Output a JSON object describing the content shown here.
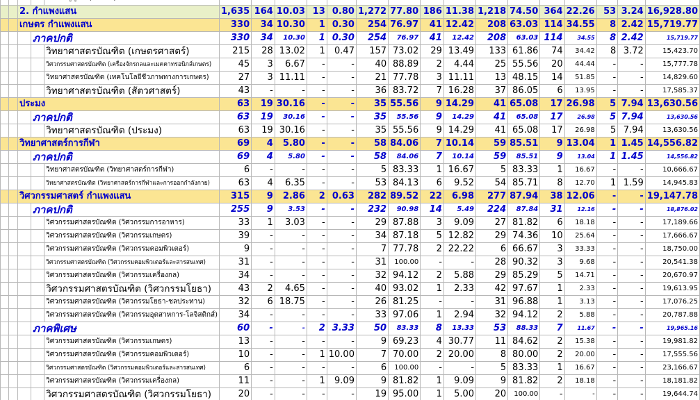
{
  "document": {
    "top_row": {
      "label": "ระดับปริญญาตรี (ภาคปกติ) กรณีศึกษา",
      "nums": [
        "",
        "",
        "",
        "",
        "",
        "",
        "",
        "",
        "",
        "",
        "",
        "",
        "",
        "",
        "",
        "",
        ""
      ]
    },
    "rows": [
      {
        "type": "uni",
        "label": "2. กำแพงแสน",
        "nums": [
          "1,635",
          "164",
          "10.03",
          "13",
          "0.80",
          "1,272",
          "77.80",
          "186",
          "11.38",
          "1,218",
          "74.50",
          "364",
          "22.26",
          "53",
          "3.24",
          "16,928.80"
        ]
      },
      {
        "type": "yellow",
        "label": "เกษตร กำแพงแสน",
        "nums": [
          "330",
          "34",
          "10.30",
          "1",
          "0.30",
          "254",
          "76.97",
          "41",
          "12.42",
          "208",
          "63.03",
          "114",
          "34.55",
          "8",
          "2.42",
          "15,719.77"
        ]
      },
      {
        "type": "sec",
        "label": "ภาคปกติ",
        "nums": [
          "330",
          "34",
          "10.30",
          "1",
          "0.30",
          "254",
          "76.97",
          "41",
          "12.42",
          "208",
          "63.03",
          "114",
          "34.55",
          "8",
          "2.42",
          "15,719.77"
        ]
      },
      {
        "type": "prog",
        "size": "n",
        "label": "วิทยาศาสตรบัณฑิต (เกษตรศาสตร์)",
        "nums": [
          "215",
          "28",
          "13.02",
          "1",
          "0.47",
          "157",
          "73.02",
          "29",
          "13.49",
          "133",
          "61.86",
          "74",
          "34.42",
          "8",
          "3.72",
          "15,423.70"
        ]
      },
      {
        "type": "prog",
        "size": "xs",
        "label": "วิศวกรรมศาสตรบัณฑิต (เครื่องจักรกลและเมคคาทรอนิกส์เกษตร)",
        "nums": [
          "45",
          "3",
          "6.67",
          "-",
          "-",
          "40",
          "88.89",
          "2",
          "4.44",
          "25",
          "55.56",
          "20",
          "44.44",
          "-",
          "-",
          "15,777.78"
        ]
      },
      {
        "type": "prog",
        "size": "s",
        "label": "วิทยาศาสตรบัณฑิต (เทคโนโลยีชีวภาพทางการเกษตร)",
        "nums": [
          "27",
          "3",
          "11.11",
          "-",
          "-",
          "21",
          "77.78",
          "3",
          "11.11",
          "13",
          "48.15",
          "14",
          "51.85",
          "-",
          "-",
          "14,829.60"
        ]
      },
      {
        "type": "prog",
        "size": "n",
        "label": "วิทยาศาสตรบัณฑิต (สัตวศาสตร์)",
        "nums": [
          "43",
          "-",
          "-",
          "-",
          "-",
          "36",
          "83.72",
          "7",
          "16.28",
          "37",
          "86.05",
          "6",
          "13.95",
          "-",
          "-",
          "17,585.37"
        ]
      },
      {
        "type": "yellow",
        "label": "ประมง",
        "nums": [
          "63",
          "19",
          "30.16",
          "-",
          "-",
          "35",
          "55.56",
          "9",
          "14.29",
          "41",
          "65.08",
          "17",
          "26.98",
          "5",
          "7.94",
          "13,630.56"
        ]
      },
      {
        "type": "sec",
        "label": "ภาคปกติ",
        "nums": [
          "63",
          "19",
          "30.16",
          "-",
          "-",
          "35",
          "55.56",
          "9",
          "14.29",
          "41",
          "65.08",
          "17",
          "26.98",
          "5",
          "7.94",
          "13,630.56"
        ]
      },
      {
        "type": "prog",
        "size": "n",
        "label": "วิทยาศาสตรบัณฑิต (ประมง)",
        "nums": [
          "63",
          "19",
          "30.16",
          "-",
          "-",
          "35",
          "55.56",
          "9",
          "14.29",
          "41",
          "65.08",
          "17",
          "26.98",
          "5",
          "7.94",
          "13,630.56"
        ]
      },
      {
        "type": "yellow",
        "label": "วิทยาศาสตร์การกีฬา",
        "nums": [
          "69",
          "4",
          "5.80",
          "-",
          "-",
          "58",
          "84.06",
          "7",
          "10.14",
          "59",
          "85.51",
          "9",
          "13.04",
          "1",
          "1.45",
          "14,556.82"
        ]
      },
      {
        "type": "sec",
        "label": "ภาคปกติ",
        "nums": [
          "69",
          "4",
          "5.80",
          "-",
          "-",
          "58",
          "84.06",
          "7",
          "10.14",
          "59",
          "85.51",
          "9",
          "13.04",
          "1",
          "1.45",
          "14,556.82"
        ]
      },
      {
        "type": "prog",
        "size": "s",
        "label": "วิทยาศาสตรบัณฑิต (วิทยาศาสตร์การกีฬา)",
        "nums": [
          "6",
          "-",
          "-",
          "-",
          "-",
          "5",
          "83.33",
          "1",
          "16.67",
          "5",
          "83.33",
          "1",
          "16.67",
          "-",
          "-",
          "10,666.67"
        ]
      },
      {
        "type": "prog",
        "size": "xs",
        "label": "วิทยาศาสตรบัณฑิต (วิทยาศาสตร์การกีฬาและการออกกำลังกาย)",
        "nums": [
          "63",
          "4",
          "6.35",
          "-",
          "-",
          "53",
          "84.13",
          "6",
          "9.52",
          "54",
          "85.71",
          "8",
          "12.70",
          "1",
          "1.59",
          "14,945.83"
        ]
      },
      {
        "type": "yellow",
        "label": "วิศวกรรมศาสตร์ กำแพงแสน",
        "nums": [
          "315",
          "9",
          "2.86",
          "2",
          "0.63",
          "282",
          "89.52",
          "22",
          "6.98",
          "277",
          "87.94",
          "38",
          "12.06",
          "-",
          "-",
          "19,147.78"
        ]
      },
      {
        "type": "sec",
        "label": "ภาคปกติ",
        "nums": [
          "255",
          "9",
          "3.53",
          "-",
          "-",
          "232",
          "90.98",
          "14",
          "5.49",
          "224",
          "87.84",
          "31",
          "12.16",
          "-",
          "-",
          "18,876.02"
        ]
      },
      {
        "type": "prog",
        "size": "s",
        "label": "วิศวกรรมศาสตรบัณฑิต (วิศวกรรมการอาหาร)",
        "nums": [
          "33",
          "1",
          "3.03",
          "-",
          "-",
          "29",
          "87.88",
          "3",
          "9.09",
          "27",
          "81.82",
          "6",
          "18.18",
          "-",
          "-",
          "17,189.66"
        ]
      },
      {
        "type": "prog",
        "size": "s",
        "label": "วิศวกรรมศาสตรบัณฑิต (วิศวกรรมเกษตร)",
        "nums": [
          "39",
          "-",
          "-",
          "-",
          "-",
          "34",
          "87.18",
          "5",
          "12.82",
          "29",
          "74.36",
          "10",
          "25.64",
          "-",
          "-",
          "17,666.67"
        ]
      },
      {
        "type": "prog",
        "size": "s",
        "label": "วิศวกรรมศาสตรบัณฑิต (วิศวกรรมคอมพิวเตอร์)",
        "nums": [
          "9",
          "-",
          "-",
          "-",
          "-",
          "7",
          "77.78",
          "2",
          "22.22",
          "6",
          "66.67",
          "3",
          "33.33",
          "-",
          "-",
          "18,750.00"
        ]
      },
      {
        "type": "prog",
        "size": "xs",
        "label": "วิศวกรรมศาสตรบัณฑิต (วิศวกรรมคอมพิวเตอร์และสารสนเทศ)",
        "nums": [
          "31",
          "-",
          "-",
          "-",
          "-",
          "31",
          "100.00",
          "-",
          "-",
          "28",
          "90.32",
          "3",
          "9.68",
          "-",
          "-",
          "20,541.38"
        ]
      },
      {
        "type": "prog",
        "size": "s",
        "label": "วิศวกรรมศาสตรบัณฑิต (วิศวกรรมเครื่องกล)",
        "nums": [
          "34",
          "-",
          "-",
          "-",
          "-",
          "32",
          "94.12",
          "2",
          "5.88",
          "29",
          "85.29",
          "5",
          "14.71",
          "-",
          "-",
          "20,670.97"
        ]
      },
      {
        "type": "prog",
        "size": "n",
        "label": "วิศวกรรมศาสตรบัณฑิต (วิศวกรรมโยธา)",
        "nums": [
          "43",
          "2",
          "4.65",
          "-",
          "-",
          "40",
          "93.02",
          "1",
          "2.33",
          "42",
          "97.67",
          "1",
          "2.33",
          "-",
          "-",
          "19,613.95"
        ]
      },
      {
        "type": "prog",
        "size": "s",
        "label": "วิศวกรรมศาสตรบัณฑิต (วิศวกรรมโยธา-ชลประทาน)",
        "nums": [
          "32",
          "6",
          "18.75",
          "-",
          "-",
          "26",
          "81.25",
          "-",
          "-",
          "31",
          "96.88",
          "1",
          "3.13",
          "-",
          "-",
          "17,076.25"
        ]
      },
      {
        "type": "prog",
        "size": "s",
        "label": "วิศวกรรมศาสตรบัณฑิต (วิศวกรรมอุตสาหการ-โลจิสติกส์)",
        "nums": [
          "34",
          "-",
          "-",
          "-",
          "-",
          "33",
          "97.06",
          "1",
          "2.94",
          "32",
          "94.12",
          "2",
          "5.88",
          "-",
          "-",
          "20,787.88"
        ]
      },
      {
        "type": "sec",
        "label": "ภาคพิเศษ",
        "nums": [
          "60",
          "-",
          "-",
          "2",
          "3.33",
          "50",
          "83.33",
          "8",
          "13.33",
          "53",
          "88.33",
          "7",
          "11.67",
          "-",
          "-",
          "19,965.16"
        ]
      },
      {
        "type": "prog",
        "size": "s",
        "label": "วิศวกรรมศาสตรบัณฑิต (วิศวกรรมเกษตร)",
        "nums": [
          "13",
          "-",
          "-",
          "-",
          "-",
          "9",
          "69.23",
          "4",
          "30.77",
          "11",
          "84.62",
          "2",
          "15.38",
          "-",
          "-",
          "19,981.82"
        ]
      },
      {
        "type": "prog",
        "size": "s",
        "label": "วิศวกรรมศาสตรบัณฑิต (วิศวกรรมคอมพิวเตอร์)",
        "nums": [
          "10",
          "-",
          "-",
          "1",
          "10.00",
          "7",
          "70.00",
          "2",
          "20.00",
          "8",
          "80.00",
          "2",
          "20.00",
          "-",
          "-",
          "17,555.56"
        ]
      },
      {
        "type": "prog",
        "size": "xs",
        "label": "วิศวกรรมศาสตรบัณฑิต (วิศวกรรมคอมพิวเตอร์และสารสนเทศ)",
        "nums": [
          "6",
          "-",
          "-",
          "-",
          "-",
          "6",
          "100.00",
          "-",
          "-",
          "5",
          "83.33",
          "1",
          "16.67",
          "-",
          "-",
          "23,166.67"
        ]
      },
      {
        "type": "prog",
        "size": "s",
        "label": "วิศวกรรมศาสตรบัณฑิต (วิศวกรรมเครื่องกล)",
        "nums": [
          "11",
          "-",
          "-",
          "1",
          "9.09",
          "9",
          "81.82",
          "1",
          "9.09",
          "9",
          "81.82",
          "2",
          "18.18",
          "-",
          "-",
          "18,181.82"
        ]
      },
      {
        "type": "prog",
        "size": "n",
        "label": "วิศวกรรมศาสตรบัณฑิต (วิศวกรรมโยธา)",
        "nums": [
          "20",
          "-",
          "-",
          "-",
          "-",
          "19",
          "95.00",
          "1",
          "5.00",
          "20",
          "100.00",
          "-",
          "-",
          "-",
          "-",
          "19,644.74"
        ]
      }
    ]
  }
}
